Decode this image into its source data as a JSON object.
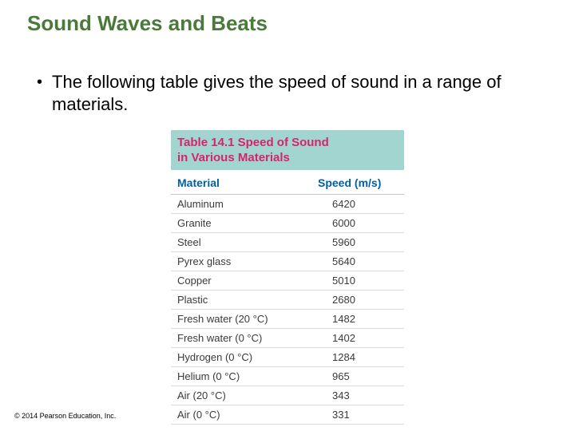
{
  "slide": {
    "title": "Sound Waves and Beats",
    "title_color": "#4a7a3a",
    "title_fontsize": 26,
    "bullet_text": "The following table gives the speed of sound in a range of materials.",
    "bullet_fontsize": 22,
    "background_color": "#ffffff"
  },
  "table": {
    "caption_line1": "Table 14.1 Speed of Sound",
    "caption_line2": "in Various Materials",
    "caption_bg": "#a3d5d0",
    "caption_color": "#d6246c",
    "caption_fontsize": 15,
    "header_material": "Material",
    "header_speed": "Speed (m/s)",
    "header_color": "#005f9e",
    "header_fontsize": 14,
    "row_fontsize": 13,
    "row_text_color": "#3a3a3a",
    "row_border_color": "#dcdcdc",
    "rows": [
      {
        "material": "Aluminum",
        "speed": "6420"
      },
      {
        "material": "Granite",
        "speed": "6000"
      },
      {
        "material": "Steel",
        "speed": "5960"
      },
      {
        "material": "Pyrex glass",
        "speed": "5640"
      },
      {
        "material": "Copper",
        "speed": "5010"
      },
      {
        "material": "Plastic",
        "speed": "2680"
      },
      {
        "material": "Fresh water (20 °C)",
        "speed": "1482"
      },
      {
        "material": "Fresh water (0 °C)",
        "speed": "1402"
      },
      {
        "material": "Hydrogen (0 °C)",
        "speed": "1284"
      },
      {
        "material": "Helium (0 °C)",
        "speed": "965"
      },
      {
        "material": "Air (20 °C)",
        "speed": "343"
      },
      {
        "material": "Air (0 °C)",
        "speed": "331"
      }
    ]
  },
  "copyright": "© 2014 Pearson Education, Inc."
}
